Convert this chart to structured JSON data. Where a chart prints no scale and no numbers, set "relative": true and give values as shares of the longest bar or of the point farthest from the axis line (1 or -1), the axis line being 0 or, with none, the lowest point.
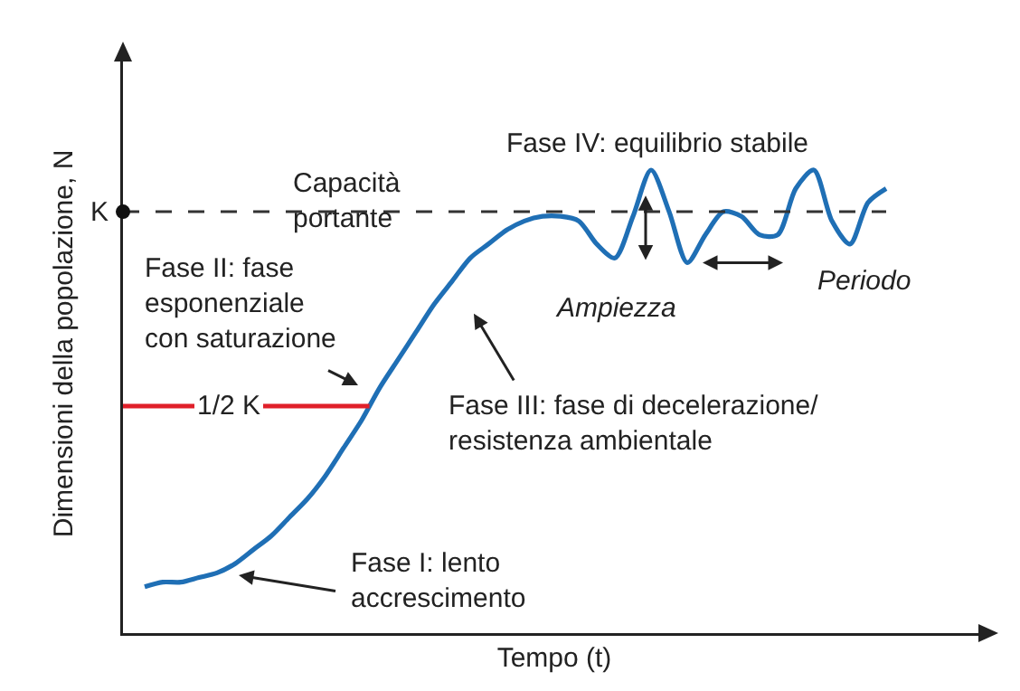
{
  "chart_data": {
    "type": "line",
    "relative": true,
    "xlabel": "Tempo (t)",
    "ylabel": "Dimensioni della popolazione, N",
    "marker": "none",
    "line_style": "solid",
    "categories": [
      null,
      null,
      null,
      null,
      null,
      null,
      null,
      null,
      null,
      null,
      null,
      null,
      null,
      null,
      null,
      null,
      null,
      null,
      null,
      null,
      null,
      null,
      null,
      null,
      null,
      null,
      null,
      null,
      null,
      null,
      null,
      null,
      null,
      null,
      null,
      null,
      null,
      null,
      null,
      null,
      null,
      null
    ],
    "series": [
      {
        "color": "#1f6fb5",
        "values": [
          0.1,
          0.11,
          0.11,
          0.12,
          0.13,
          0.15,
          0.18,
          0.21,
          0.25,
          0.29,
          0.34,
          0.4,
          0.46,
          0.53,
          0.59,
          0.65,
          0.71,
          0.76,
          0.81,
          0.84,
          0.87,
          0.89,
          0.9,
          0.9,
          0.89,
          0.84,
          0.81,
          0.9,
          1.0,
          0.91,
          0.8,
          0.86,
          0.91,
          0.9,
          0.86,
          0.86,
          0.96,
          1.0,
          0.89,
          0.84,
          0.93,
          0.96
        ]
      }
    ],
    "ref_lines": [
      {
        "axis": "y",
        "value": 0.91,
        "label": "K",
        "color": "#333333",
        "line_style": "dashed"
      },
      {
        "axis": "y",
        "value": 0.49,
        "label": "1/2 K",
        "color": "#e0202a",
        "line_style": "solid"
      }
    ],
    "annotations": [
      "Capacità\nportante",
      "Fase I: lento\naccrescimento",
      "Fase II: fase\nesponenziale\ncon saturazione",
      "Fase III: fase di decelerazione/\nresistenza ambientale",
      "Fase IV: equilibrio stabile",
      "Ampiezza",
      "Periodo"
    ]
  }
}
